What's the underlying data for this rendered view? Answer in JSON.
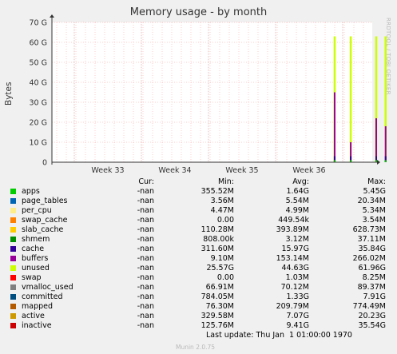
{
  "title": "Memory usage - by month",
  "side_label": "RRDTOOL / TOBI OETIKER",
  "colors": {
    "background": "#f0f0f0",
    "plot_background": "#ffffff",
    "grid_minor": "#ff9b9b",
    "grid_major": "#e0b0b0",
    "axis": "#333333"
  },
  "chart_data": {
    "type": "area",
    "title": "Memory usage - by month",
    "ylabel": "Bytes",
    "y_ticks": [
      "0",
      "10 G",
      "20 G",
      "30 G",
      "40 G",
      "50 G",
      "60 G",
      "70 G"
    ],
    "ylim": [
      0,
      70
    ],
    "x_ticks": [
      "Week 33",
      "Week 34",
      "Week 35",
      "Week 36"
    ],
    "grid": true,
    "spikes": [
      {
        "week": 36.38,
        "series": "unused",
        "value": 63
      },
      {
        "week": 36.38,
        "series": "buffers",
        "value": 35
      },
      {
        "week": 36.62,
        "series": "unused",
        "value": 63
      },
      {
        "week": 36.62,
        "series": "buffers",
        "value": 10
      },
      {
        "week": 37.0,
        "series": "unused",
        "value": 63
      },
      {
        "week": 37.0,
        "series": "buffers",
        "value": 22
      },
      {
        "week": 37.14,
        "series": "unused",
        "value": 63
      },
      {
        "week": 37.14,
        "series": "buffers",
        "value": 18
      }
    ]
  },
  "legend": {
    "headers": {
      "cur": "Cur:",
      "min": "Min:",
      "avg": "Avg:",
      "max": "Max:"
    },
    "rows": [
      {
        "name": "apps",
        "color": "#00cc00",
        "cur": "-nan",
        "min": "355.52M",
        "avg": "1.64G",
        "max": "5.45G"
      },
      {
        "name": "page_tables",
        "color": "#0066b3",
        "cur": "-nan",
        "min": "3.56M",
        "avg": "5.54M",
        "max": "20.34M"
      },
      {
        "name": "per_cpu",
        "color": "#ffee88",
        "cur": "-nan",
        "min": "4.47M",
        "avg": "4.99M",
        "max": "5.34M"
      },
      {
        "name": "swap_cache",
        "color": "#ff8000",
        "cur": "-nan",
        "min": "0.00",
        "avg": "449.54k",
        "max": "3.54M"
      },
      {
        "name": "slab_cache",
        "color": "#ffcc00",
        "cur": "-nan",
        "min": "110.28M",
        "avg": "393.89M",
        "max": "628.73M"
      },
      {
        "name": "shmem",
        "color": "#008f00",
        "cur": "-nan",
        "min": "808.00k",
        "avg": "3.12M",
        "max": "37.11M"
      },
      {
        "name": "cache",
        "color": "#330099",
        "cur": "-nan",
        "min": "311.60M",
        "avg": "15.97G",
        "max": "35.84G"
      },
      {
        "name": "buffers",
        "color": "#990099",
        "cur": "-nan",
        "min": "9.10M",
        "avg": "153.14M",
        "max": "266.02M"
      },
      {
        "name": "unused",
        "color": "#ccff00",
        "cur": "-nan",
        "min": "25.57G",
        "avg": "44.63G",
        "max": "61.96G"
      },
      {
        "name": "swap",
        "color": "#ff0000",
        "cur": "-nan",
        "min": "0.00",
        "avg": "1.03M",
        "max": "8.25M"
      },
      {
        "name": "vmalloc_used",
        "color": "#808080",
        "cur": "-nan",
        "min": "66.91M",
        "avg": "70.12M",
        "max": "89.37M"
      },
      {
        "name": "committed",
        "color": "#004d80",
        "cur": "-nan",
        "min": "784.05M",
        "avg": "1.33G",
        "max": "7.91G"
      },
      {
        "name": "mapped",
        "color": "#b35900",
        "cur": "-nan",
        "min": "76.30M",
        "avg": "209.79M",
        "max": "774.49M"
      },
      {
        "name": "active",
        "color": "#cc9900",
        "cur": "-nan",
        "min": "329.58M",
        "avg": "7.07G",
        "max": "20.23G"
      },
      {
        "name": "inactive",
        "color": "#cc0000",
        "cur": "-nan",
        "min": "125.76M",
        "avg": "9.41G",
        "max": "35.54G"
      }
    ]
  },
  "last_update": "Last update: Thu Jan  1 01:00:00 1970",
  "munin_version": "Munin 2.0.75"
}
